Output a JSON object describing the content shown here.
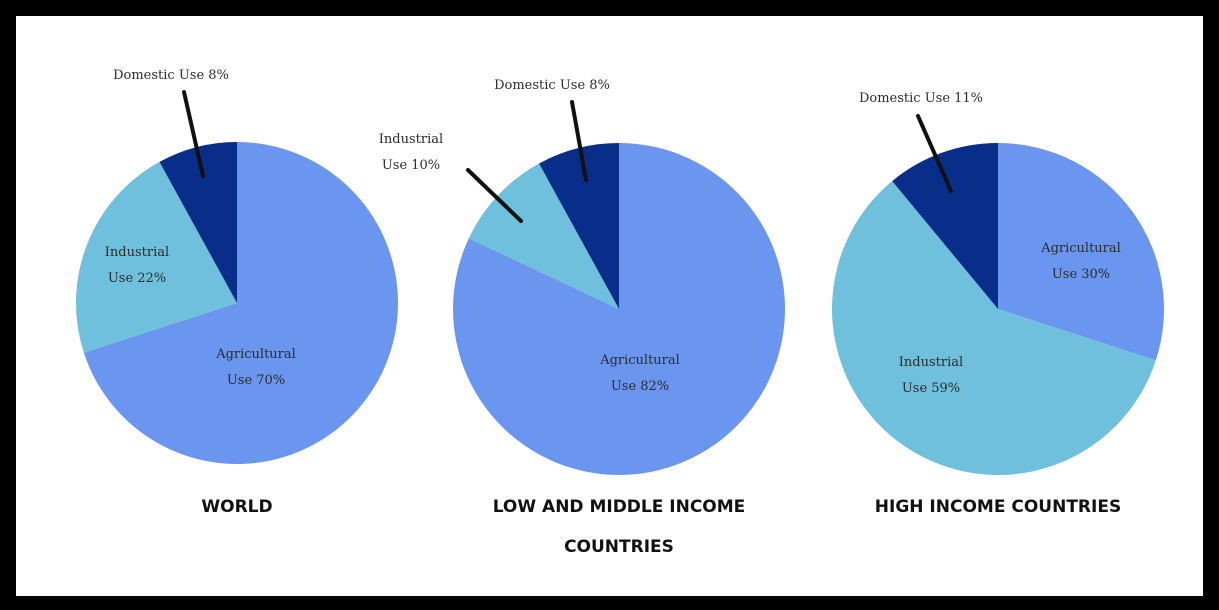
{
  "colors": {
    "agricultural": "#6b96f0",
    "industrial": "#6ec0dc",
    "domestic": "#082e8a",
    "leader": "#111111"
  },
  "chart_data": [
    {
      "type": "pie",
      "title": "WORLD",
      "categories": [
        "Agricultural Use",
        "Industrial Use",
        "Domestic Use"
      ],
      "values": [
        70,
        22,
        8
      ],
      "labels": [
        [
          "Agricultural",
          "Use 70%"
        ],
        [
          "Industrial",
          "Use 22%"
        ],
        [
          "Domestic Use 8%"
        ]
      ]
    },
    {
      "type": "pie",
      "title": "LOW AND MIDDLE INCOME COUNTRIES",
      "title_lines": [
        "LOW AND MIDDLE INCOME",
        "COUNTRIES"
      ],
      "categories": [
        "Agricultural Use",
        "Industrial Use",
        "Domestic Use"
      ],
      "values": [
        82,
        10,
        8
      ],
      "labels": [
        [
          "Agricultural",
          "Use 82%"
        ],
        [
          "Industrial",
          "Use 10%"
        ],
        [
          "Domestic Use 8%"
        ]
      ]
    },
    {
      "type": "pie",
      "title": "HIGH INCOME COUNTRIES",
      "categories": [
        "Agricultural Use",
        "Industrial Use",
        "Domestic Use"
      ],
      "values": [
        30,
        59,
        11
      ],
      "labels": [
        [
          "Agricultural",
          "Use 30%"
        ],
        [
          "Industrial",
          "Use 59%"
        ],
        [
          "Domestic Use 11%"
        ]
      ]
    }
  ]
}
